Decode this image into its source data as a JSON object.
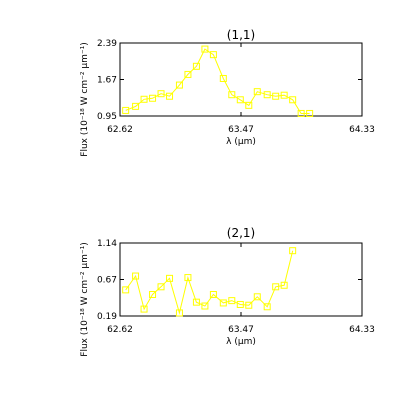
{
  "colors": {
    "series": "#ffff00",
    "axes": "#000000",
    "background": "#ffffff"
  },
  "chart_data": [
    {
      "type": "line",
      "title": "(1,1)",
      "xlabel": "λ (μm)",
      "ylabel": "Flux (10⁻¹⁸ W cm⁻² μm⁻¹)",
      "xlim": [
        62.62,
        64.33
      ],
      "ylim": [
        0.95,
        2.39
      ],
      "xticks": [
        "62.62",
        "63.47",
        "64.33"
      ],
      "yticks": [
        "0.95",
        "1.67",
        "2.39"
      ],
      "marker": "square",
      "series": [
        {
          "x": [
            62.66,
            62.73,
            62.79,
            62.85,
            62.91,
            62.97,
            63.04,
            63.1,
            63.16,
            63.22,
            63.28,
            63.35,
            63.41,
            63.47,
            63.53,
            63.59,
            63.66,
            63.72,
            63.78,
            63.84,
            63.9,
            63.96
          ],
          "y": [
            1.06,
            1.14,
            1.28,
            1.3,
            1.39,
            1.34,
            1.56,
            1.77,
            1.93,
            2.27,
            2.16,
            1.69,
            1.37,
            1.27,
            1.16,
            1.43,
            1.37,
            1.34,
            1.36,
            1.27,
            1.0,
            1.0
          ]
        }
      ]
    },
    {
      "type": "line",
      "title": "(2,1)",
      "xlabel": "λ (μm)",
      "ylabel": "Flux (10⁻¹⁸ W cm⁻² μm⁻¹)",
      "xlim": [
        62.62,
        64.33
      ],
      "ylim": [
        0.19,
        1.14
      ],
      "xticks": [
        "62.62",
        "63.47",
        "64.33"
      ],
      "yticks": [
        "0.19",
        "0.67",
        "1.14"
      ],
      "marker": "square",
      "series": [
        {
          "x": [
            62.66,
            62.73,
            62.79,
            62.85,
            62.91,
            62.97,
            63.04,
            63.1,
            63.16,
            63.22,
            63.28,
            63.35,
            63.41,
            63.47,
            63.53,
            63.59,
            63.66,
            63.72,
            63.78,
            63.84
          ],
          "y": [
            0.53,
            0.71,
            0.28,
            0.47,
            0.57,
            0.68,
            0.23,
            0.69,
            0.37,
            0.32,
            0.47,
            0.36,
            0.39,
            0.34,
            0.33,
            0.44,
            0.31,
            0.57,
            0.59,
            1.04
          ]
        }
      ]
    }
  ]
}
